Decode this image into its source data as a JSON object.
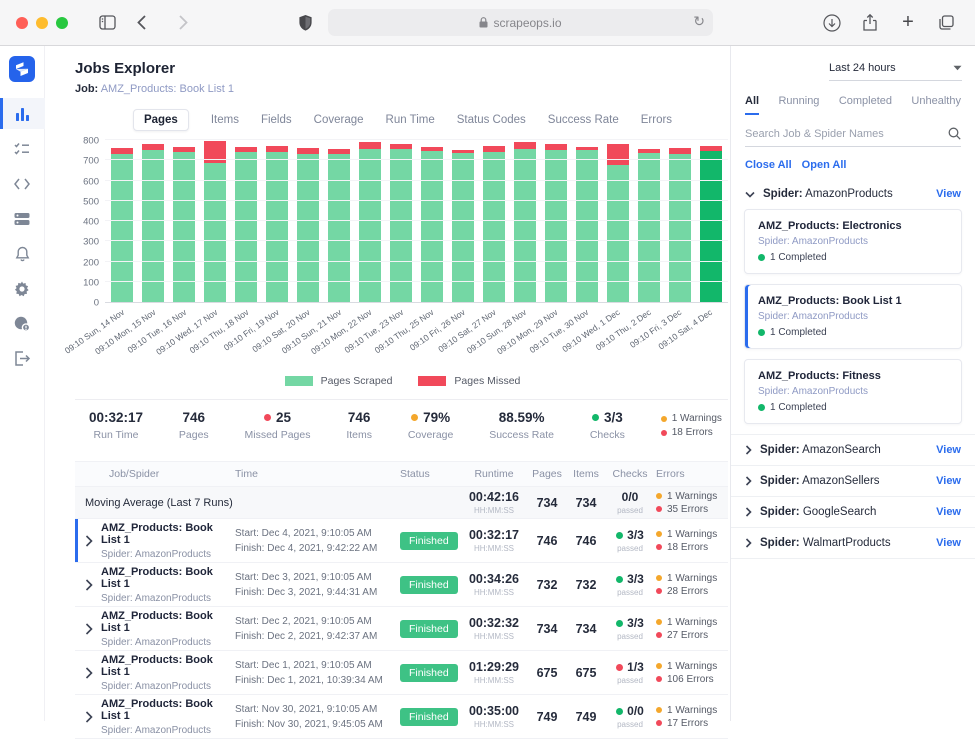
{
  "colors": {
    "accent": "#2b6ced",
    "green": "#12b76a",
    "light_green": "#74d7a4",
    "dark_green": "#12b76a",
    "red": "#f1495a",
    "orange": "#f4a72c",
    "badge_green": "#3ec285"
  },
  "browser": {
    "url": "scrapeops.io"
  },
  "nav": {
    "items": [
      {
        "name": "analytics",
        "active": true
      },
      {
        "name": "tasks",
        "active": false
      },
      {
        "name": "code",
        "active": false
      },
      {
        "name": "servers",
        "active": false
      },
      {
        "name": "alerts",
        "active": false
      },
      {
        "name": "settings",
        "active": false
      },
      {
        "name": "usage",
        "active": false
      },
      {
        "name": "logout",
        "active": false
      }
    ]
  },
  "header": {
    "title": "Jobs Explorer",
    "job_label": "Job:",
    "job_value": "AMZ_Products: Book List 1"
  },
  "tabs": [
    {
      "label": "Pages",
      "active": true
    },
    {
      "label": "Items",
      "active": false
    },
    {
      "label": "Fields",
      "active": false
    },
    {
      "label": "Coverage",
      "active": false
    },
    {
      "label": "Run Time",
      "active": false
    },
    {
      "label": "Status Codes",
      "active": false
    },
    {
      "label": "Success Rate",
      "active": false
    },
    {
      "label": "Errors",
      "active": false
    }
  ],
  "chart_data": {
    "type": "bar",
    "stacked": true,
    "title": "",
    "xlabel": "",
    "ylabel": "",
    "ylim": [
      0,
      800
    ],
    "yticks": [
      0,
      100,
      200,
      300,
      400,
      500,
      600,
      700,
      800
    ],
    "grid": true,
    "legend_position": "bottom",
    "categories": [
      "09:10 Sun, 14 Nov",
      "09:10 Mon, 15 Nov",
      "09:10 Tue, 16 Nov",
      "09:10 Wed, 17 Nov",
      "09:10 Thu, 18 Nov",
      "09:10 Fri, 19 Nov",
      "09:10 Sat, 20 Nov",
      "09:10 Sun, 21 Nov",
      "09:10 Mon, 22 Nov",
      "09:10 Tue, 23 Nov",
      "09:10 Thu, 25 Nov",
      "09:10 Fri, 26 Nov",
      "09:10 Sat, 27 Nov",
      "09:10 Sun, 28 Nov",
      "09:10 Mon, 29 Nov",
      "09:10 Tue, 30 Nov",
      "09:10 Wed, 1 Dec",
      "09:10 Thu, 2 Dec",
      "09:10 Fri, 3 Dec",
      "09:10 Sat, 4 Dec"
    ],
    "series": [
      {
        "name": "Pages Scraped",
        "color": "#74d7a4",
        "values": [
          732,
          751,
          741,
          686,
          741,
          743,
          731,
          729,
          757,
          756,
          744,
          736,
          743,
          756,
          749,
          749,
          675,
          734,
          732,
          746
        ]
      },
      {
        "name": "Pages Missed",
        "color": "#f1495a",
        "values": [
          30,
          29,
          26,
          110,
          25,
          26,
          30,
          28,
          33,
          24,
          22,
          17,
          25,
          34,
          29,
          17,
          106,
          23,
          28,
          25
        ]
      }
    ],
    "highlight_index": 19,
    "highlight_color": "#12b76a"
  },
  "stats": [
    {
      "value": "00:32:17",
      "label": "Run Time",
      "dot": null
    },
    {
      "value": "746",
      "label": "Pages",
      "dot": null
    },
    {
      "value": "25",
      "label": "Missed Pages",
      "dot": "#f1495a"
    },
    {
      "value": "746",
      "label": "Items",
      "dot": null
    },
    {
      "value": "79%",
      "label": "Coverage",
      "dot": "#f4a72c"
    },
    {
      "value": "88.59%",
      "label": "Success Rate",
      "dot": null
    },
    {
      "value": "3/3",
      "label": "Checks",
      "dot": "#12b76a"
    }
  ],
  "alerts": {
    "warnings": "1 Warnings",
    "errors": "18 Errors"
  },
  "table": {
    "headers": [
      "Job/Spider",
      "Time",
      "Status",
      "Runtime",
      "Pages",
      "Items",
      "Checks",
      "Errors"
    ],
    "runtime_unit": "HH:MM:SS",
    "checks_sub": "passed",
    "rows": [
      {
        "type": "summary",
        "name": "Moving Average (Last 7 Runs)",
        "spider": "",
        "start": "",
        "finish": "",
        "status": "",
        "runtime": "00:42:16",
        "pages": "734",
        "items": "734",
        "checks": "0/0",
        "checks_dot": null,
        "warnings": "1 Warnings",
        "errors": "35 Errors",
        "selected": false
      },
      {
        "type": "run",
        "name": "AMZ_Products: Book List 1",
        "spider": "Spider: AmazonProducts",
        "start": "Start: Dec 4, 2021, 9:10:05 AM",
        "finish": "Finish: Dec 4, 2021, 9:42:22 AM",
        "status": "Finished",
        "runtime": "00:32:17",
        "pages": "746",
        "items": "746",
        "checks": "3/3",
        "checks_dot": "#12b76a",
        "warnings": "1 Warnings",
        "errors": "18 Errors",
        "selected": true
      },
      {
        "type": "run",
        "name": "AMZ_Products: Book List 1",
        "spider": "Spider: AmazonProducts",
        "start": "Start: Dec 3, 2021, 9:10:05 AM",
        "finish": "Finish: Dec 3, 2021, 9:44:31 AM",
        "status": "Finished",
        "runtime": "00:34:26",
        "pages": "732",
        "items": "732",
        "checks": "3/3",
        "checks_dot": "#12b76a",
        "warnings": "1 Warnings",
        "errors": "28 Errors",
        "selected": false
      },
      {
        "type": "run",
        "name": "AMZ_Products: Book List 1",
        "spider": "Spider: AmazonProducts",
        "start": "Start: Dec 2, 2021, 9:10:05 AM",
        "finish": "Finish: Dec 2, 2021, 9:42:37 AM",
        "status": "Finished",
        "runtime": "00:32:32",
        "pages": "734",
        "items": "734",
        "checks": "3/3",
        "checks_dot": "#12b76a",
        "warnings": "1 Warnings",
        "errors": "27 Errors",
        "selected": false
      },
      {
        "type": "run",
        "name": "AMZ_Products: Book List 1",
        "spider": "Spider: AmazonProducts",
        "start": "Start: Dec 1, 2021, 9:10:05 AM",
        "finish": "Finish: Dec 1, 2021, 10:39:34 AM",
        "status": "Finished",
        "runtime": "01:29:29",
        "pages": "675",
        "items": "675",
        "checks": "1/3",
        "checks_dot": "#f1495a",
        "warnings": "1 Warnings",
        "errors": "106 Errors",
        "selected": false
      },
      {
        "type": "run",
        "name": "AMZ_Products: Book List 1",
        "spider": "Spider: AmazonProducts",
        "start": "Start: Nov 30, 2021, 9:10:05 AM",
        "finish": "Finish: Nov 30, 2021, 9:45:05 AM",
        "status": "Finished",
        "runtime": "00:35:00",
        "pages": "749",
        "items": "749",
        "checks": "0/0",
        "checks_dot": "#12b76a",
        "warnings": "1 Warnings",
        "errors": "17 Errors",
        "selected": false
      }
    ]
  },
  "panel": {
    "time_range": "Last 24 hours",
    "filters": [
      {
        "label": "All",
        "active": true
      },
      {
        "label": "Running",
        "active": false
      },
      {
        "label": "Completed",
        "active": false
      },
      {
        "label": "Unhealthy",
        "active": false
      }
    ],
    "search_placeholder": "Search Job & Spider Names",
    "close_all": "Close All",
    "open_all": "Open All",
    "view_label": "View",
    "spider_label": "Spider:",
    "spiders": [
      {
        "name": "AmazonProducts",
        "expanded": true,
        "jobs": [
          {
            "name": "AMZ_Products: Electronics",
            "spider": "Spider: AmazonProducts",
            "status": "1 Completed",
            "selected": false
          },
          {
            "name": "AMZ_Products: Book List 1",
            "spider": "Spider: AmazonProducts",
            "status": "1 Completed",
            "selected": true
          },
          {
            "name": "AMZ_Products: Fitness",
            "spider": "Spider: AmazonProducts",
            "status": "1 Completed",
            "selected": false
          }
        ]
      },
      {
        "name": "AmazonSearch",
        "expanded": false,
        "jobs": []
      },
      {
        "name": "AmazonSellers",
        "expanded": false,
        "jobs": []
      },
      {
        "name": "GoogleSearch",
        "expanded": false,
        "jobs": []
      },
      {
        "name": "WalmartProducts",
        "expanded": false,
        "jobs": []
      }
    ]
  }
}
